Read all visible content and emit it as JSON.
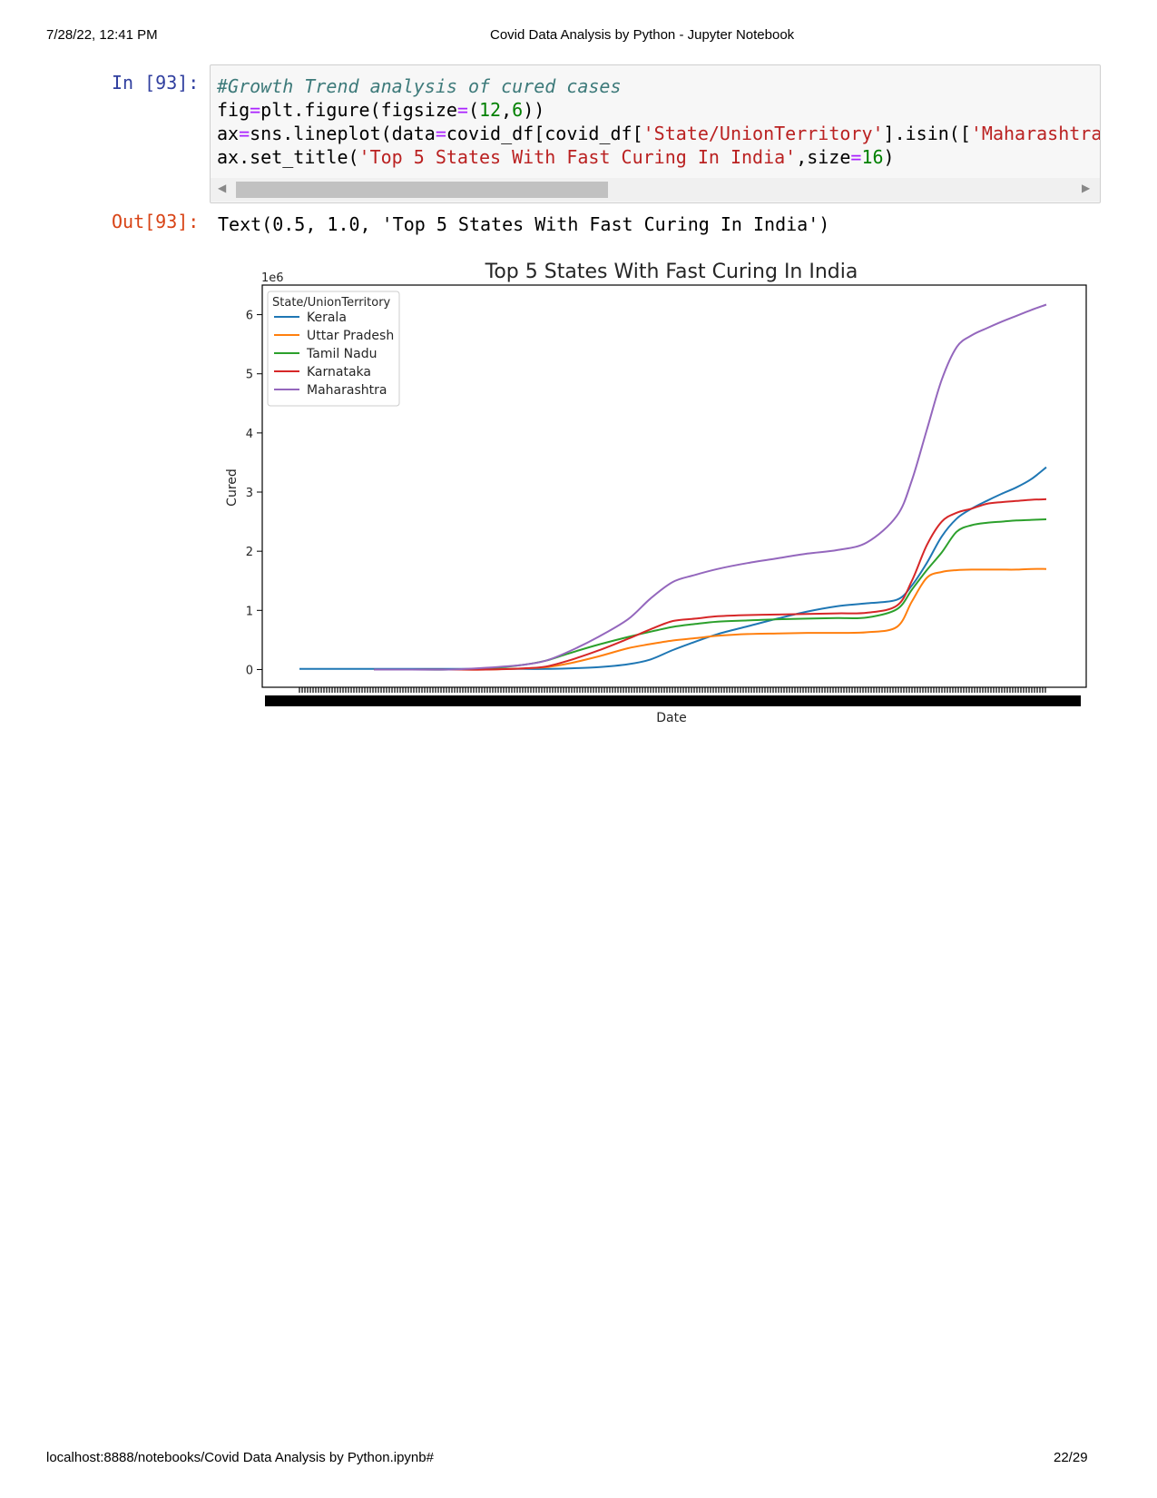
{
  "header": {
    "datetime": "7/28/22, 12:41 PM",
    "page_title": "Covid Data Analysis by Python - Jupyter Notebook"
  },
  "footer": {
    "url": "localhost:8888/notebooks/Covid Data Analysis by Python.ipynb#",
    "page_number": "22/29"
  },
  "cell": {
    "in_prompt": "In [93]:",
    "out_prompt": "Out[93]:",
    "code": {
      "comment": "#Growth Trend analysis of cured cases",
      "line2": {
        "a": "fig",
        "op1": "=",
        "b": "plt.figure(figsize",
        "op2": "=",
        "c": "(",
        "n1": "12",
        "d": ",",
        "n2": "6",
        "e": "))"
      },
      "line3": {
        "a": "ax",
        "op1": "=",
        "b": "sns.lineplot(data",
        "op2": "=",
        "c": "covid_df[covid_df[",
        "s1": "'State/UnionTerritory'",
        "d": "].isin([",
        "s2": "'Maharashtra"
      },
      "line4": {
        "a": "ax.set_title(",
        "s1": "'Top 5 States With Fast Curing In India'",
        "b": ",size",
        "op": "=",
        "n": "16",
        "c": ")"
      }
    },
    "output_text": "Text(0.5, 1.0, 'Top 5 States With Fast Curing In India')"
  },
  "colors": {
    "prompt_in": "#303f9f",
    "prompt_out": "#d84315",
    "Kerala": "#1f77b4",
    "Uttar Pradesh": "#ff7f0e",
    "Tamil Nadu": "#2ca02c",
    "Karnataka": "#d62728",
    "Maharashtra": "#9467bd"
  },
  "chart_data": {
    "type": "line",
    "title": "Top 5 States With Fast Curing In India",
    "xlabel": "Date",
    "ylabel": "Cured",
    "y_offset_label": "1e6",
    "yticks": [
      0,
      1,
      2,
      3,
      4,
      5,
      6
    ],
    "ylim": [
      -0.3,
      6.5
    ],
    "x_tick_labels_note": "overlapping, unreadable date tick labels",
    "legend_title": "State/UnionTerritory",
    "legend_position": "upper-left",
    "x": [
      0,
      0.05,
      0.1,
      0.15,
      0.2,
      0.25,
      0.3,
      0.33,
      0.36,
      0.4,
      0.44,
      0.47,
      0.5,
      0.53,
      0.56,
      0.6,
      0.64,
      0.68,
      0.72,
      0.76,
      0.8,
      0.82,
      0.84,
      0.86,
      0.88,
      0.9,
      0.92,
      0.94,
      0.96,
      0.98,
      1.0
    ],
    "series": [
      {
        "name": "Kerala",
        "values": [
          0.01,
          0.01,
          0.01,
          0.01,
          0.01,
          0.01,
          0.01,
          0.01,
          0.02,
          0.04,
          0.09,
          0.17,
          0.33,
          0.47,
          0.6,
          0.73,
          0.86,
          0.98,
          1.07,
          1.12,
          1.18,
          1.42,
          1.8,
          2.25,
          2.55,
          2.72,
          2.85,
          2.97,
          3.08,
          3.22,
          3.42
        ]
      },
      {
        "name": "Uttar Pradesh",
        "values": [
          null,
          null,
          0.0,
          0.0,
          0.0,
          0.0,
          0.02,
          0.04,
          0.1,
          0.22,
          0.36,
          0.43,
          0.49,
          0.53,
          0.57,
          0.6,
          0.61,
          0.62,
          0.62,
          0.63,
          0.72,
          1.15,
          1.55,
          1.65,
          1.68,
          1.69,
          1.69,
          1.69,
          1.69,
          1.7,
          1.7
        ]
      },
      {
        "name": "Tamil Nadu",
        "values": [
          null,
          null,
          0.0,
          0.0,
          0.0,
          0.02,
          0.08,
          0.15,
          0.27,
          0.42,
          0.55,
          0.64,
          0.72,
          0.77,
          0.81,
          0.83,
          0.85,
          0.86,
          0.87,
          0.88,
          1.02,
          1.35,
          1.68,
          1.98,
          2.33,
          2.44,
          2.48,
          2.5,
          2.52,
          2.53,
          2.54
        ]
      },
      {
        "name": "Karnataka",
        "values": [
          null,
          null,
          0.0,
          0.0,
          0.0,
          0.0,
          0.02,
          0.05,
          0.15,
          0.32,
          0.52,
          0.68,
          0.82,
          0.86,
          0.9,
          0.92,
          0.93,
          0.94,
          0.95,
          0.96,
          1.08,
          1.5,
          2.1,
          2.5,
          2.65,
          2.72,
          2.8,
          2.83,
          2.85,
          2.87,
          2.88
        ]
      },
      {
        "name": "Maharashtra",
        "values": [
          null,
          null,
          0.0,
          0.0,
          0.0,
          0.03,
          0.08,
          0.15,
          0.3,
          0.55,
          0.85,
          1.2,
          1.48,
          1.6,
          1.7,
          1.8,
          1.88,
          1.96,
          2.02,
          2.15,
          2.6,
          3.2,
          4.05,
          4.9,
          5.45,
          5.65,
          5.77,
          5.88,
          5.98,
          6.08,
          6.17
        ]
      }
    ]
  }
}
